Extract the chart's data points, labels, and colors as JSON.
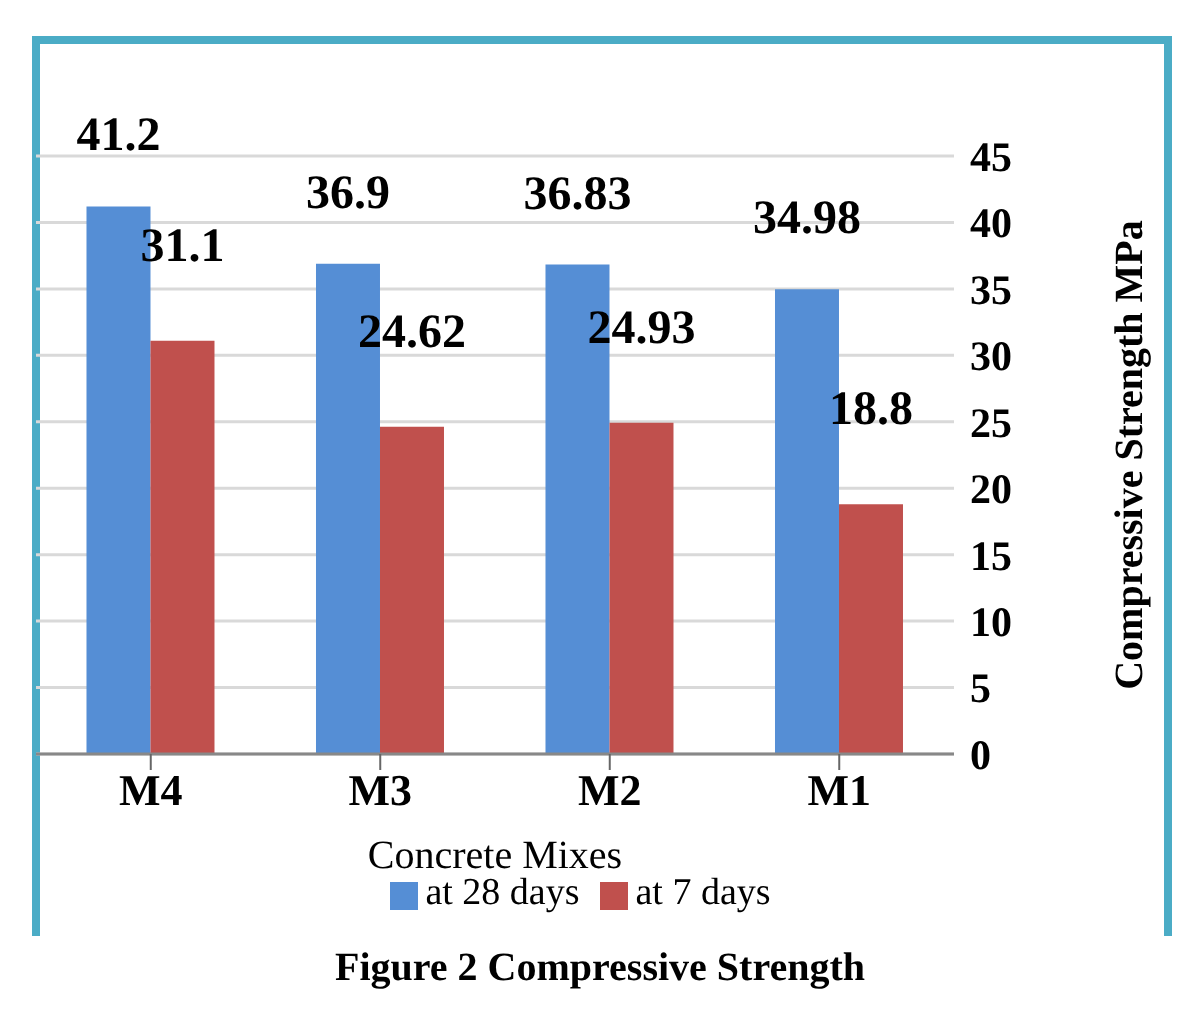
{
  "chart_data": {
    "type": "bar",
    "title": "Figure 2 Compressive Strength",
    "xlabel": "Concrete Mixes",
    "ylabel": "Compressive Strength MPa",
    "categories": [
      "M4",
      "M3",
      "M2",
      "M1"
    ],
    "series": [
      {
        "name": "at 28 days",
        "color": "#558ed5",
        "values": [
          41.2,
          36.9,
          36.83,
          34.98
        ]
      },
      {
        "name": "at 7 days",
        "color": "#c0504d",
        "values": [
          31.1,
          24.62,
          24.93,
          18.8
        ]
      }
    ],
    "ylim": [
      0,
      45
    ],
    "yticks": [
      0,
      5,
      10,
      15,
      20,
      25,
      30,
      35,
      40,
      45
    ],
    "grid": "y",
    "legend": "bottom",
    "data_labels": true
  }
}
